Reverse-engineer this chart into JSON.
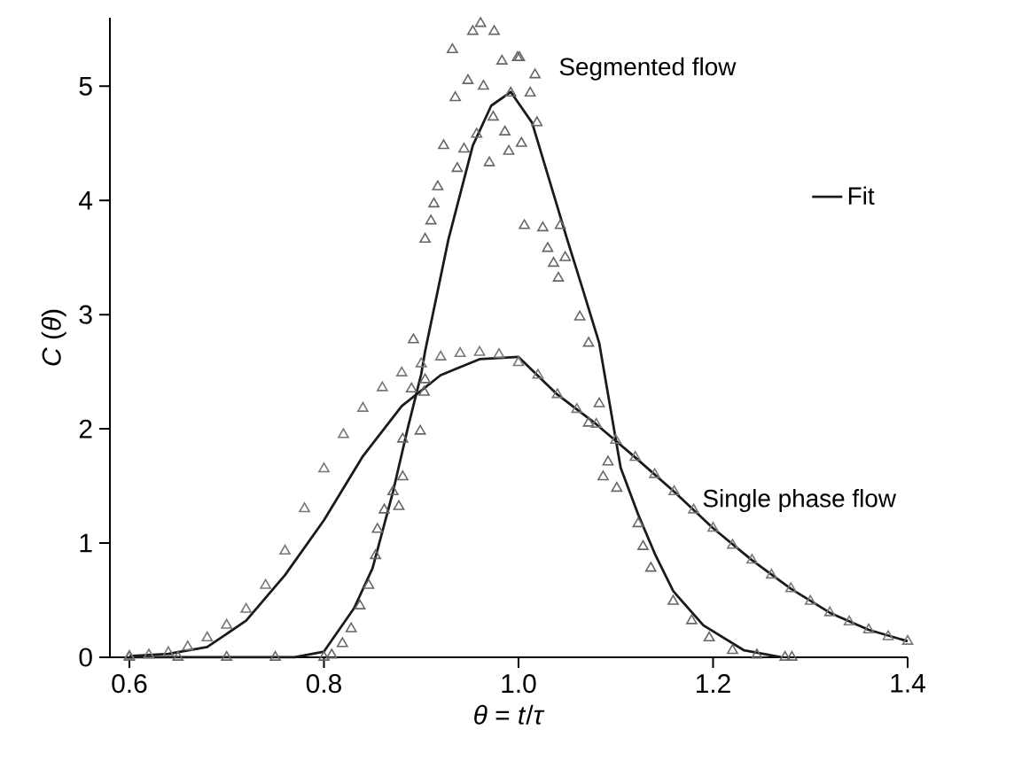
{
  "chart_data": {
    "type": "scatter",
    "xlabel": "*θ* = *t*/*τ*",
    "ylabel": "*C* (*θ*)",
    "xlim": [
      0.58,
      1.4
    ],
    "ylim": [
      0,
      5.6
    ],
    "xticks": [
      0.6,
      0.8,
      {
        "value": 1.0,
        "label": "1.0"
      },
      1.2,
      1.4
    ],
    "yticks": [
      0,
      1,
      2,
      3,
      4,
      5
    ],
    "grid": false,
    "legend": "right",
    "annotations": [
      "Segmented flow",
      "Single phase flow"
    ],
    "series": [
      {
        "marker": "triangle",
        "color": "#666666",
        "x": [
          0.6,
          0.65,
          0.7,
          0.75,
          0.8,
          0.808,
          0.819,
          0.828,
          0.837,
          0.846,
          0.853,
          0.855,
          0.862,
          0.871,
          0.877,
          0.881,
          0.881,
          0.899,
          0.89,
          0.903,
          0.904,
          0.892,
          0.904,
          0.91,
          0.913,
          0.917,
          0.923,
          0.937,
          0.944,
          0.932,
          0.935,
          0.948,
          0.953,
          0.961,
          0.964,
          0.975,
          0.97,
          0.957,
          0.974,
          0.986,
          0.99,
          1.003,
          0.983,
          0.999,
          1.006,
          0.992,
          1.001,
          1.017,
          1.012,
          1.019,
          1.025,
          1.043,
          1.03,
          1.036,
          1.048,
          1.041,
          1.063,
          1.072,
          1.083,
          1.072,
          1.092,
          1.087,
          1.101,
          1.123,
          1.128,
          1.136,
          1.159,
          1.178,
          1.196,
          1.22,
          1.245,
          1.274,
          1.281
        ],
        "values": [
          0,
          0,
          0,
          0,
          0,
          0.02,
          0.12,
          0.25,
          0.45,
          0.63,
          0.89,
          1.12,
          1.29,
          1.45,
          1.32,
          1.58,
          1.91,
          1.98,
          2.35,
          2.32,
          2.43,
          2.78,
          3.66,
          3.82,
          3.97,
          4.12,
          4.48,
          4.28,
          4.45,
          5.32,
          4.9,
          5.05,
          5.48,
          5.55,
          5.0,
          5.48,
          4.33,
          4.58,
          4.73,
          4.6,
          4.43,
          4.5,
          5.22,
          5.25,
          3.78,
          4.94,
          5.25,
          5.1,
          4.94,
          4.68,
          3.76,
          3.78,
          3.58,
          3.45,
          3.5,
          3.32,
          2.98,
          2.75,
          2.22,
          2.05,
          1.71,
          1.58,
          1.48,
          1.17,
          0.97,
          0.78,
          0.49,
          0.32,
          0.17,
          0.06,
          0.02,
          0,
          0
        ]
      },
      {
        "type": "line",
        "marker": "none",
        "color": "#1a1a1a",
        "name": "Fit",
        "x": [
          0.6,
          0.7,
          0.77,
          0.8,
          0.831,
          0.85,
          0.871,
          0.886,
          0.9,
          0.904,
          0.928,
          0.953,
          0.972,
          0.992,
          1.014,
          1.032,
          1.05,
          1.065,
          1.083,
          1.105,
          1.123,
          1.141,
          1.159,
          1.19,
          1.232,
          1.27
        ],
        "values": [
          0,
          0,
          0,
          0.05,
          0.43,
          0.78,
          1.45,
          2.0,
          2.48,
          2.68,
          3.66,
          4.48,
          4.83,
          4.95,
          4.68,
          4.17,
          3.66,
          3.25,
          2.75,
          1.66,
          1.25,
          0.89,
          0.58,
          0.28,
          0.06,
          0
        ]
      },
      {
        "marker": "triangle",
        "color": "#777777",
        "x": [
          0.6,
          0.62,
          0.64,
          0.66,
          0.68,
          0.7,
          0.72,
          0.74,
          0.76,
          0.78,
          0.8,
          0.82,
          0.84,
          0.86,
          0.88,
          0.9,
          0.92,
          0.94,
          0.96,
          0.98,
          1.0,
          1.02,
          1.04,
          1.06,
          1.08,
          1.1,
          1.12,
          1.14,
          1.16,
          1.18,
          1.2,
          1.22,
          1.24,
          1.26,
          1.28,
          1.3,
          1.32,
          1.34,
          1.36,
          1.38,
          1.4
        ],
        "values": [
          0.01,
          0.02,
          0.04,
          0.09,
          0.17,
          0.28,
          0.42,
          0.63,
          0.93,
          1.3,
          1.65,
          1.95,
          2.18,
          2.36,
          2.49,
          2.57,
          2.63,
          2.66,
          2.67,
          2.65,
          2.58,
          2.47,
          2.3,
          2.17,
          2.04,
          1.9,
          1.75,
          1.6,
          1.45,
          1.29,
          1.13,
          0.98,
          0.85,
          0.72,
          0.6,
          0.49,
          0.39,
          0.31,
          0.24,
          0.18,
          0.14
        ]
      },
      {
        "type": "line",
        "marker": "none",
        "color": "#1a1a1a",
        "x": [
          0.6,
          0.64,
          0.68,
          0.72,
          0.76,
          0.8,
          0.84,
          0.88,
          0.92,
          0.96,
          1.0,
          1.04,
          1.08,
          1.12,
          1.16,
          1.2,
          1.24,
          1.28,
          1.32,
          1.36,
          1.4
        ],
        "values": [
          0.01,
          0.03,
          0.09,
          0.32,
          0.72,
          1.2,
          1.76,
          2.2,
          2.47,
          2.61,
          2.63,
          2.3,
          2.04,
          1.75,
          1.45,
          1.13,
          0.85,
          0.6,
          0.39,
          0.24,
          0.14
        ]
      }
    ]
  }
}
